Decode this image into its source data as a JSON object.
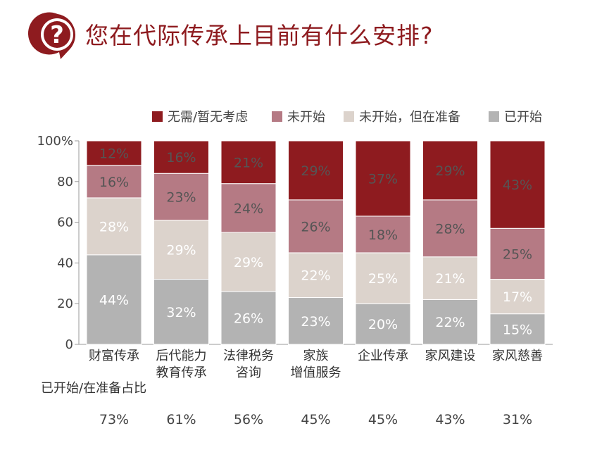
{
  "header": {
    "icon_name": "question-mark-icon",
    "icon_glyph": "?",
    "title": "您在代际传承上目前有什么安排?"
  },
  "colors": {
    "accent": "#8e1b1f",
    "series": [
      "#b3b3b3",
      "#dcd3cc",
      "#b57a84",
      "#8e1b1f"
    ],
    "label_on_dark": "#ffffff",
    "label_on_light": "#555555"
  },
  "chart_data": {
    "type": "bar",
    "stacked": true,
    "categories": [
      [
        "财富传承"
      ],
      [
        "后代能力",
        "教育传承"
      ],
      [
        "法律税务",
        "咨询"
      ],
      [
        "家族",
        "增值服务"
      ],
      [
        "企业传承"
      ],
      [
        "家风建设"
      ],
      [
        "家风慈善"
      ]
    ],
    "series": [
      {
        "name": "已开始",
        "values": [
          44,
          32,
          26,
          23,
          20,
          22,
          15
        ]
      },
      {
        "name": "未开始，但在准备",
        "values": [
          28,
          29,
          29,
          22,
          25,
          21,
          17
        ]
      },
      {
        "name": "未开始",
        "values": [
          16,
          23,
          24,
          26,
          18,
          28,
          25
        ]
      },
      {
        "name": "无需/暂无考虑",
        "values": [
          12,
          16,
          21,
          29,
          37,
          29,
          43
        ]
      }
    ],
    "legend_order": [
      "无需/暂无考虑",
      "未开始",
      "未开始，但在准备",
      "已开始"
    ],
    "legend_position": "top",
    "ylim": [
      0,
      100
    ],
    "yticks": [
      "0",
      "20",
      "40",
      "60",
      "80",
      "100%"
    ],
    "value_suffix": "%",
    "grid": false,
    "footer": {
      "label": "已开始/在准备占比",
      "values": [
        "73%",
        "61%",
        "56%",
        "45%",
        "45%",
        "43%",
        "31%"
      ]
    }
  }
}
